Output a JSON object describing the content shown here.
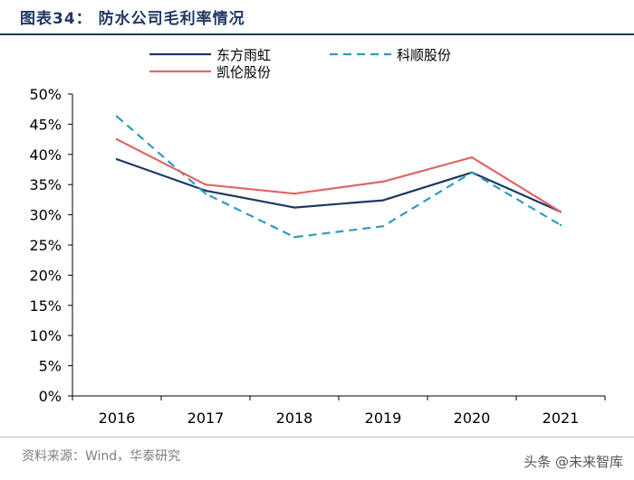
{
  "header": {
    "title": "图表34：  防水公司毛利率情况"
  },
  "footer": {
    "source": "资料来源：Wind，华泰研究",
    "watermark": "头条 @未来智库"
  },
  "colors": {
    "axis": "#000000",
    "series_1": "#1f3864",
    "series_2": "#2e9cbf",
    "series_3": "#e06666"
  },
  "chart_data": {
    "type": "line",
    "title": "防水公司毛利率情况",
    "categories": [
      "2016",
      "2017",
      "2018",
      "2019",
      "2020",
      "2021"
    ],
    "ylim": [
      0,
      50
    ],
    "yticks": [
      0,
      5,
      10,
      15,
      20,
      25,
      30,
      35,
      40,
      45,
      50
    ],
    "ytick_labels": [
      "0%",
      "5%",
      "10%",
      "15%",
      "20%",
      "25%",
      "30%",
      "35%",
      "40%",
      "45%",
      "50%"
    ],
    "grid": false,
    "legend_position": "top",
    "series": [
      {
        "name": "东方雨虹",
        "style": "solid",
        "color": "#1f3864",
        "values": [
          39.2,
          34.0,
          31.2,
          32.4,
          37.0,
          30.5
        ]
      },
      {
        "name": "科顺股份",
        "style": "dashed",
        "color": "#2e9cbf",
        "values": [
          46.3,
          33.5,
          26.3,
          28.1,
          37.0,
          28.3
        ]
      },
      {
        "name": "凯伦股份",
        "style": "solid",
        "color": "#e06666",
        "values": [
          42.5,
          35.0,
          33.5,
          35.5,
          39.5,
          30.5
        ]
      }
    ]
  }
}
